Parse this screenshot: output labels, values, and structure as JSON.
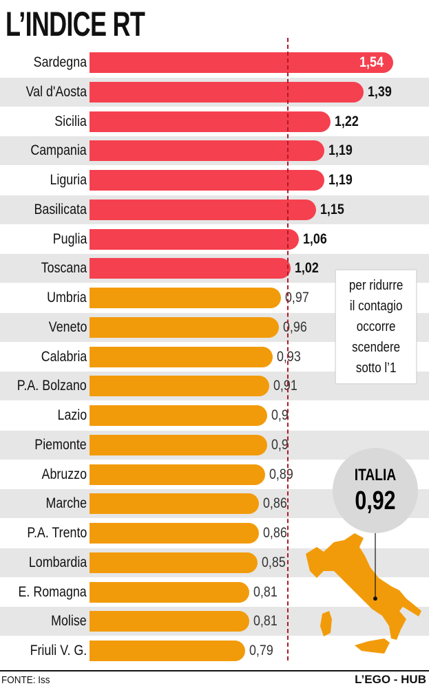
{
  "title": "L’INDICE RT",
  "chart_data": {
    "type": "bar",
    "orientation": "horizontal",
    "title": "L’INDICE RT",
    "categories": [
      "Sardegna",
      "Val d'Aosta",
      "Sicilia",
      "Campania",
      "Liguria",
      "Basilicata",
      "Puglia",
      "Toscana",
      "Umbria",
      "Veneto",
      "Calabria",
      "P.A. Bolzano",
      "Lazio",
      "Piemonte",
      "Abruzzo",
      "Marche",
      "P.A. Trento",
      "Lombardia",
      "E. Romagna",
      "Molise",
      "Friuli V. G."
    ],
    "values": [
      1.54,
      1.39,
      1.22,
      1.19,
      1.19,
      1.15,
      1.06,
      1.02,
      0.97,
      0.96,
      0.93,
      0.91,
      0.9,
      0.9,
      0.89,
      0.86,
      0.86,
      0.85,
      0.81,
      0.81,
      0.79
    ],
    "value_labels": [
      "1,54",
      "1,39",
      "1,22",
      "1,19",
      "1,19",
      "1,15",
      "1,06",
      "1,02",
      "0,97",
      "0,96",
      "0,93",
      "0,91",
      "0,9",
      "0,9",
      "0,89",
      "0,86",
      "0,86",
      "0,85",
      "0,81",
      "0,81",
      "0,79"
    ],
    "reference_line": 1,
    "xlim": [
      0,
      1.6
    ],
    "colors": {
      "above": "#f5404f",
      "below": "#f29b0a",
      "reference": "#b0182a"
    }
  },
  "annotation": [
    "per ridurre",
    "il contagio",
    "occorre",
    "scendere",
    "sotto l’1"
  ],
  "italia": {
    "label": "ITALIA",
    "value": "0,92"
  },
  "footer": {
    "source": "FONTE: Iss",
    "credit": "L’EGO - HUB"
  }
}
